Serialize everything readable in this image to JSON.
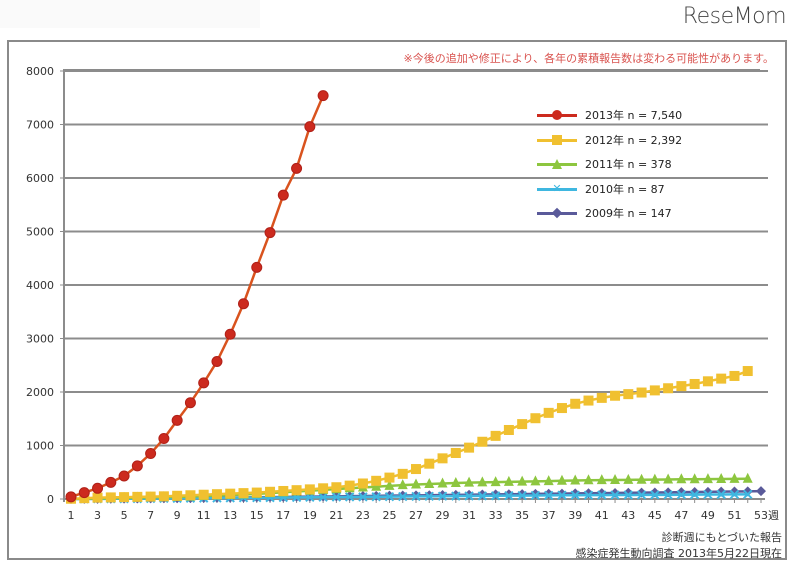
{
  "header": {
    "logo": "ReseMom"
  },
  "notice": "※今後の追加や修正により、各年の累積報告数は変わる可能性があります。",
  "footnotes": {
    "basis": "診断週にもとづいた報告",
    "source": "感染症発生動向調査 2013年5月22日現在"
  },
  "chart_data": {
    "type": "line",
    "title": "",
    "xlabel": "週",
    "ylabel": "",
    "xlim": [
      1,
      53
    ],
    "ylim": [
      0,
      8000
    ],
    "grid": true,
    "legend_position": "top-right",
    "yticks": [
      "0",
      "1000",
      "2000",
      "3000",
      "4000",
      "5000",
      "6000",
      "7000",
      "8000"
    ],
    "ytick_values": [
      0,
      1000,
      2000,
      3000,
      4000,
      5000,
      6000,
      7000,
      8000
    ],
    "xticks": [
      "1",
      "3",
      "5",
      "7",
      "9",
      "11",
      "13",
      "15",
      "17",
      "19",
      "21",
      "23",
      "25",
      "27",
      "29",
      "31",
      "33",
      "35",
      "37",
      "39",
      "41",
      "43",
      "45",
      "47",
      "49",
      "51",
      "53"
    ],
    "xtick_suffix": "週",
    "series": [
      {
        "name": "2013年 n = 7,540",
        "color": "#cc2a1e",
        "line_color": "#d9531e",
        "marker": "circle",
        "x": [
          1,
          2,
          3,
          4,
          5,
          6,
          7,
          8,
          9,
          10,
          11,
          12,
          13,
          14,
          15,
          16,
          17,
          18,
          19,
          20
        ],
        "values": [
          40,
          120,
          200,
          310,
          430,
          620,
          850,
          1130,
          1470,
          1800,
          2170,
          2570,
          3080,
          3650,
          4330,
          4980,
          5680,
          6180,
          6960,
          7540
        ]
      },
      {
        "name": "2012年 n = 2,392",
        "color": "#f0c030",
        "line_color": "#f0c030",
        "marker": "square",
        "x": [
          1,
          2,
          3,
          4,
          5,
          6,
          7,
          8,
          9,
          10,
          11,
          12,
          13,
          14,
          15,
          16,
          17,
          18,
          19,
          20,
          21,
          22,
          23,
          24,
          25,
          26,
          27,
          28,
          29,
          30,
          31,
          32,
          33,
          34,
          35,
          36,
          37,
          38,
          39,
          40,
          41,
          42,
          43,
          44,
          45,
          46,
          47,
          48,
          49,
          50,
          51,
          52
        ],
        "values": [
          5,
          15,
          25,
          30,
          35,
          40,
          45,
          50,
          60,
          70,
          80,
          90,
          100,
          110,
          120,
          135,
          150,
          165,
          180,
          200,
          220,
          250,
          290,
          340,
          400,
          470,
          560,
          660,
          760,
          860,
          960,
          1070,
          1180,
          1290,
          1400,
          1510,
          1610,
          1700,
          1780,
          1840,
          1890,
          1930,
          1960,
          1990,
          2030,
          2070,
          2110,
          2150,
          2200,
          2250,
          2300,
          2392
        ]
      },
      {
        "name": "2011年 n = 378",
        "color": "#8dc63f",
        "line_color": "#8dc63f",
        "marker": "triangle",
        "x": [
          1,
          2,
          3,
          4,
          5,
          6,
          7,
          8,
          9,
          10,
          11,
          12,
          13,
          14,
          15,
          16,
          17,
          18,
          19,
          20,
          21,
          22,
          23,
          24,
          25,
          26,
          27,
          28,
          29,
          30,
          31,
          32,
          33,
          34,
          35,
          36,
          37,
          38,
          39,
          40,
          41,
          42,
          43,
          44,
          45,
          46,
          47,
          48,
          49,
          50,
          51,
          52
        ],
        "values": [
          2,
          5,
          10,
          15,
          20,
          25,
          30,
          35,
          40,
          45,
          55,
          65,
          75,
          85,
          95,
          110,
          125,
          140,
          155,
          170,
          185,
          200,
          215,
          230,
          245,
          260,
          270,
          280,
          290,
          300,
          305,
          310,
          315,
          320,
          325,
          330,
          335,
          340,
          345,
          350,
          352,
          355,
          358,
          360,
          362,
          365,
          368,
          370,
          372,
          374,
          376,
          378
        ]
      },
      {
        "name": "2010年 n = 87",
        "color": "#3fb7e0",
        "line_color": "#3fb7e0",
        "marker": "x",
        "x": [
          1,
          2,
          3,
          4,
          5,
          6,
          7,
          8,
          9,
          10,
          11,
          12,
          13,
          14,
          15,
          16,
          17,
          18,
          19,
          20,
          21,
          22,
          23,
          24,
          25,
          26,
          27,
          28,
          29,
          30,
          31,
          32,
          33,
          34,
          35,
          36,
          37,
          38,
          39,
          40,
          41,
          42,
          43,
          44,
          45,
          46,
          47,
          48,
          49,
          50,
          51,
          52
        ],
        "values": [
          1,
          2,
          3,
          4,
          5,
          6,
          8,
          10,
          12,
          14,
          16,
          18,
          20,
          22,
          24,
          26,
          28,
          30,
          32,
          34,
          36,
          38,
          40,
          42,
          44,
          46,
          48,
          50,
          52,
          54,
          56,
          58,
          60,
          62,
          64,
          66,
          68,
          70,
          71,
          72,
          73,
          74,
          75,
          76,
          77,
          78,
          80,
          82,
          83,
          84,
          86,
          87
        ]
      },
      {
        "name": "2009年 n = 147",
        "color": "#5a5a9a",
        "line_color": "#5a5a9a",
        "marker": "diamond",
        "x": [
          1,
          2,
          3,
          4,
          5,
          6,
          7,
          8,
          9,
          10,
          11,
          12,
          13,
          14,
          15,
          16,
          17,
          18,
          19,
          20,
          21,
          22,
          23,
          24,
          25,
          26,
          27,
          28,
          29,
          30,
          31,
          32,
          33,
          34,
          35,
          36,
          37,
          38,
          39,
          40,
          41,
          42,
          43,
          44,
          45,
          46,
          47,
          48,
          49,
          50,
          51,
          52,
          53
        ],
        "values": [
          1,
          2,
          3,
          5,
          7,
          9,
          11,
          13,
          15,
          17,
          20,
          23,
          26,
          29,
          32,
          35,
          38,
          41,
          44,
          47,
          50,
          53,
          56,
          59,
          62,
          65,
          68,
          71,
          74,
          77,
          80,
          83,
          86,
          89,
          92,
          95,
          98,
          101,
          104,
          107,
          110,
          113,
          116,
          119,
          122,
          125,
          128,
          131,
          134,
          137,
          140,
          143,
          147
        ]
      }
    ]
  }
}
